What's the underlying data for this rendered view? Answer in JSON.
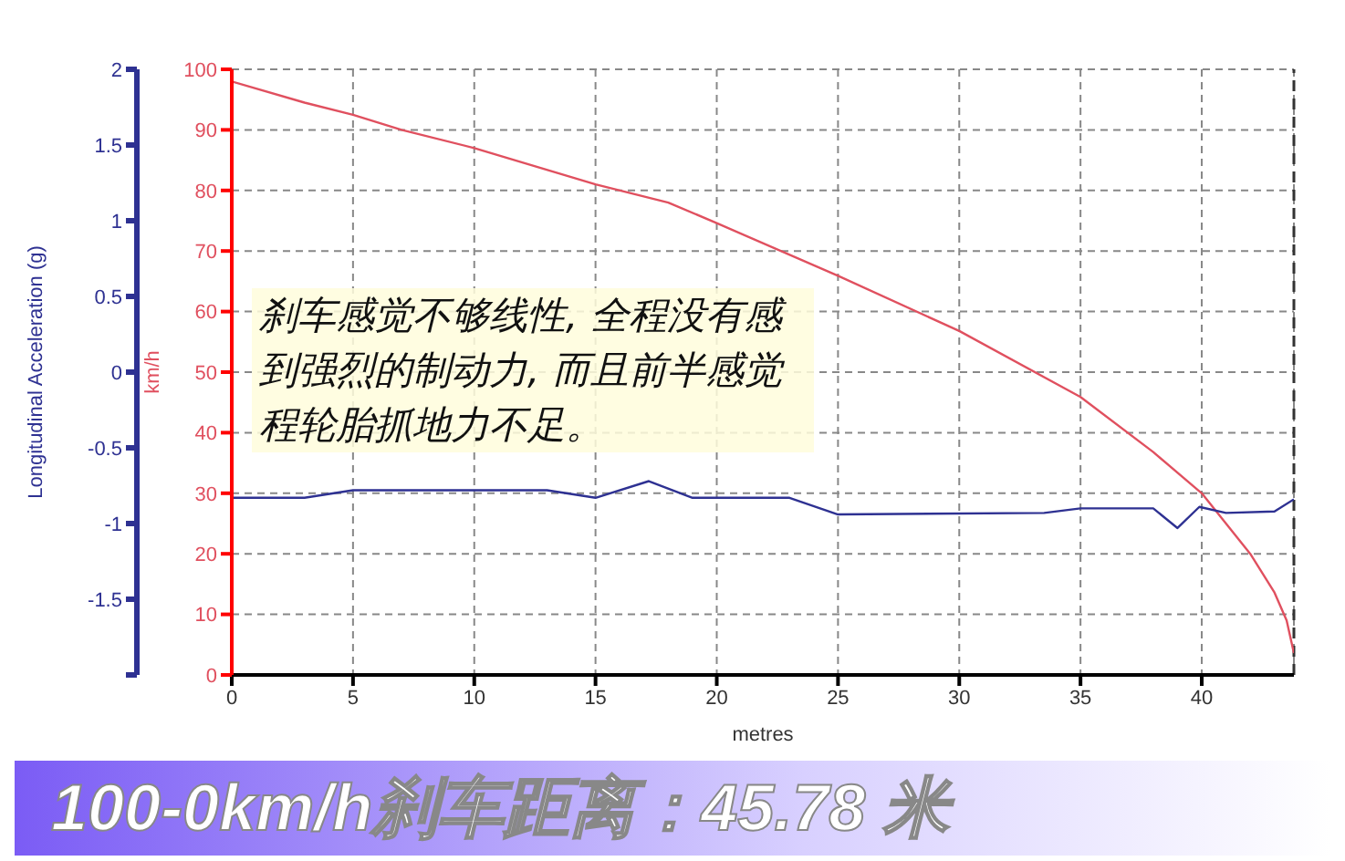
{
  "chart_data": {
    "type": "line",
    "title": "100-0km/h刹车距离：45.78 米",
    "xlabel": "metres",
    "ylabel": "km/h",
    "y2label": "Longitudinal Acceleration (g)",
    "annotations": [
      "刹车感觉不够线性, 全程没有感到强烈的制动力, 而且前半感觉程轮胎抓地力不足。"
    ],
    "xlim": [
      0,
      43.8
    ],
    "xticks": [
      0,
      5,
      10,
      15,
      20,
      25,
      30,
      35,
      40
    ],
    "ylim": [
      0,
      100
    ],
    "yticks": [
      0,
      10,
      20,
      30,
      40,
      50,
      60,
      70,
      80,
      90,
      100
    ],
    "y2lim": [
      -2,
      2
    ],
    "y2ticks": [
      {
        "value": -2,
        "label": null
      },
      -1.5,
      -1,
      -0.5,
      0,
      0.5,
      1,
      1.5,
      2
    ],
    "grid": true,
    "marker": "none",
    "line_style": "solid",
    "ref_lines": [
      {
        "axis": "x",
        "value": 43.8,
        "label": null,
        "color": "#333333",
        "line_style": "dashed"
      }
    ],
    "series": [
      {
        "color": "#e0505f",
        "x": [
          0,
          3,
          5,
          7,
          10,
          15,
          18,
          20,
          25,
          30,
          35,
          38,
          40,
          41,
          42,
          43,
          43.5,
          43.8
        ],
        "values": [
          98,
          94.5,
          92.5,
          90,
          87,
          81,
          78,
          74.6,
          65.9,
          56.8,
          45.9,
          36.8,
          30,
          25,
          20,
          13.6,
          9,
          3.6
        ]
      },
      {
        "color": "#2e3192",
        "axis": "y2",
        "x": [
          0,
          3,
          5,
          13,
          15,
          17.2,
          19,
          23,
          25,
          33.5,
          35,
          38,
          39,
          39.9,
          41,
          43,
          43.8
        ],
        "values": [
          -0.83,
          -0.83,
          -0.78,
          -0.78,
          -0.83,
          -0.72,
          -0.83,
          -0.83,
          -0.94,
          -0.93,
          -0.9,
          -0.9,
          -1.03,
          -0.89,
          -0.93,
          -0.92,
          -0.84
        ]
      }
    ]
  }
}
